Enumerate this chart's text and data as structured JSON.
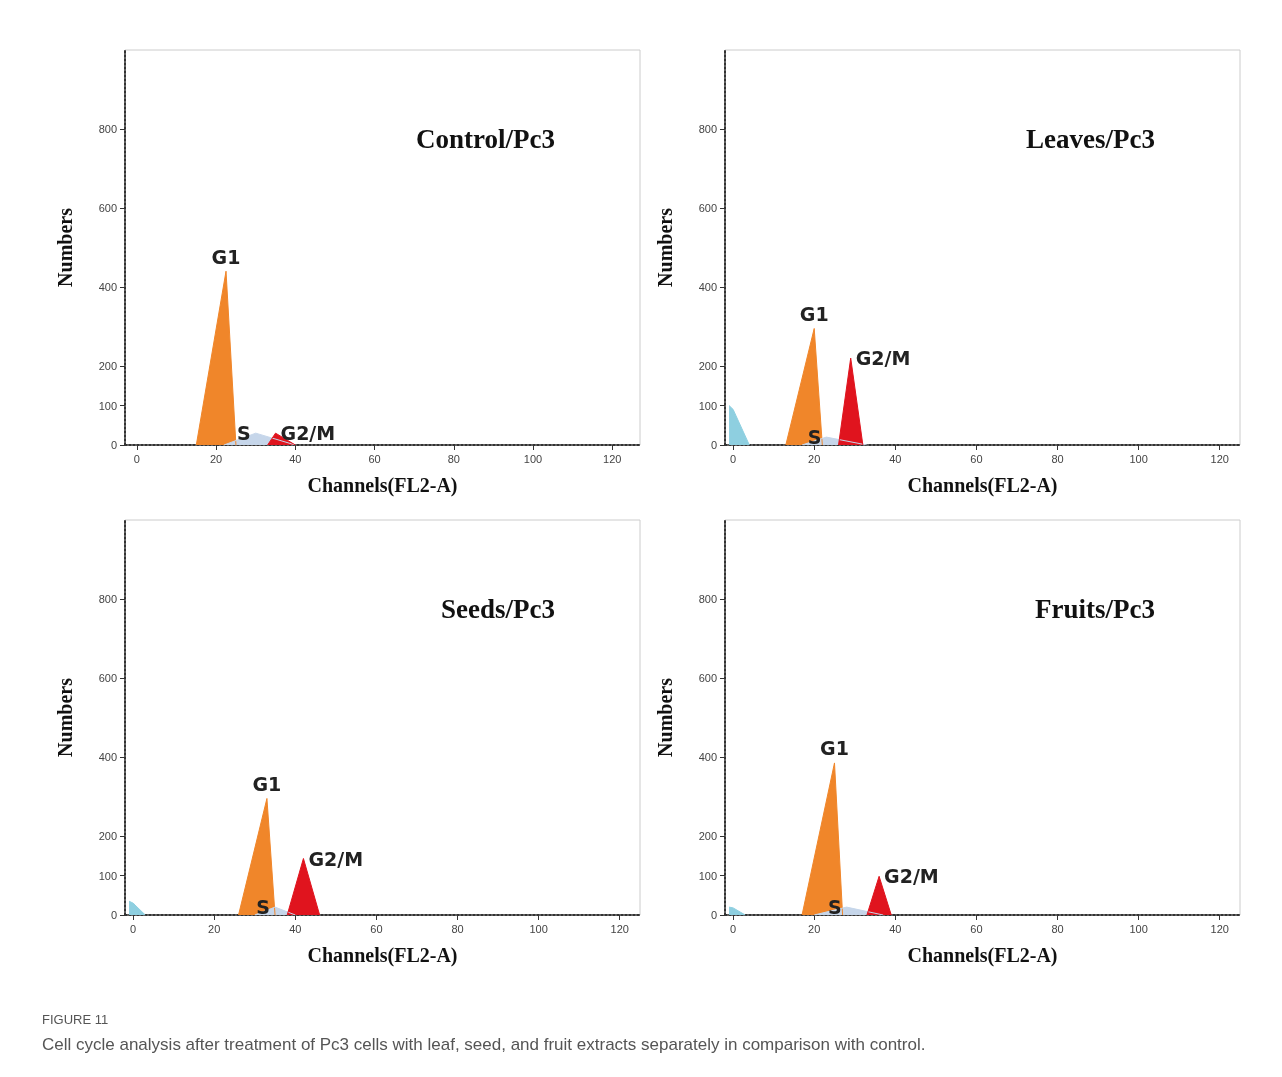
{
  "chart_data": [
    {
      "type": "area",
      "title": "Control/Pc3",
      "xlabel": "Channels(FL2-A)",
      "ylabel": "Numbers",
      "xlim": [
        -3,
        127
      ],
      "xticks": [
        0,
        20,
        40,
        60,
        80,
        100,
        120
      ],
      "ylim": [
        0,
        1000
      ],
      "yticks": [
        0,
        100,
        200,
        400,
        600,
        800
      ],
      "grid": false,
      "legend": false,
      "series": [
        {
          "name": "G1",
          "color": "#f0862a",
          "x": [
            15,
            22.5,
            25
          ],
          "values": [
            0,
            440,
            0
          ]
        },
        {
          "name": "S",
          "color": "#c6d6ea",
          "x": [
            22,
            30,
            40
          ],
          "values": [
            0,
            30,
            0
          ]
        },
        {
          "name": "G2/M",
          "color": "#e0141e",
          "x": [
            33,
            35,
            40
          ],
          "values": [
            0,
            30,
            0
          ]
        }
      ]
    },
    {
      "type": "area",
      "title": "Leaves/Pc3",
      "xlabel": "Channels(FL2-A)",
      "ylabel": "Numbers",
      "xlim": [
        -2,
        125
      ],
      "xticks": [
        0,
        20,
        40,
        60,
        80,
        100,
        120
      ],
      "ylim": [
        0,
        1000
      ],
      "yticks": [
        0,
        100,
        200,
        400,
        600,
        800
      ],
      "grid": false,
      "legend": false,
      "series": [
        {
          "color": "#8ecfe0",
          "x": [
            -1,
            0,
            4
          ],
          "values": [
            100,
            90,
            0
          ]
        },
        {
          "name": "G1",
          "color": "#f0862a",
          "x": [
            13,
            20,
            22
          ],
          "values": [
            0,
            295,
            0
          ]
        },
        {
          "name": "S",
          "color": "#c6d6ea",
          "x": [
            17,
            23,
            33
          ],
          "values": [
            0,
            20,
            0
          ]
        },
        {
          "name": "G2/M",
          "color": "#e0141e",
          "x": [
            26,
            29,
            32
          ],
          "values": [
            0,
            220,
            0
          ]
        }
      ]
    },
    {
      "type": "area",
      "title": "Seeds/Pc3",
      "xlabel": "Channels(FL2-A)",
      "ylabel": "Numbers",
      "xlim": [
        -2,
        125
      ],
      "xticks": [
        0,
        20,
        40,
        60,
        80,
        100,
        120
      ],
      "ylim": [
        0,
        1000
      ],
      "yticks": [
        0,
        100,
        200,
        400,
        600,
        800
      ],
      "grid": false,
      "legend": false,
      "series": [
        {
          "color": "#8ecfe0",
          "x": [
            -1,
            0,
            3
          ],
          "values": [
            35,
            30,
            0
          ]
        },
        {
          "name": "G1",
          "color": "#f0862a",
          "x": [
            26,
            33,
            35
          ],
          "values": [
            0,
            295,
            0
          ]
        },
        {
          "name": "S",
          "color": "#c6d6ea",
          "x": [
            30,
            35,
            40
          ],
          "values": [
            0,
            20,
            0
          ]
        },
        {
          "name": "G2/M",
          "color": "#e0141e",
          "x": [
            38,
            42,
            46
          ],
          "values": [
            0,
            143,
            0
          ]
        }
      ]
    },
    {
      "type": "area",
      "title": "Fruits/Pc3",
      "xlabel": "Channels(FL2-A)",
      "ylabel": "Numbers",
      "xlim": [
        -2,
        125
      ],
      "xticks": [
        0,
        20,
        40,
        60,
        80,
        100,
        120
      ],
      "ylim": [
        0,
        1000
      ],
      "yticks": [
        0,
        100,
        200,
        400,
        600,
        800
      ],
      "grid": false,
      "legend": false,
      "annotations": [
        "FIGURE 11",
        "Cell cycle analysis after treatment of Pc3 cells with leaf, seed, and fruit extracts separately in comparison with control."
      ],
      "series": [
        {
          "color": "#8ecfe0",
          "x": [
            -1,
            0,
            3
          ],
          "values": [
            20,
            18,
            0
          ]
        },
        {
          "name": "G1",
          "color": "#f0862a",
          "x": [
            17,
            25,
            27
          ],
          "values": [
            0,
            385,
            0
          ]
        },
        {
          "name": "S",
          "color": "#c6d6ea",
          "x": [
            20,
            28,
            37
          ],
          "values": [
            0,
            20,
            0
          ]
        },
        {
          "name": "G2/M",
          "color": "#e0141e",
          "x": [
            33,
            36,
            39
          ],
          "values": [
            0,
            98,
            0
          ]
        }
      ]
    }
  ]
}
